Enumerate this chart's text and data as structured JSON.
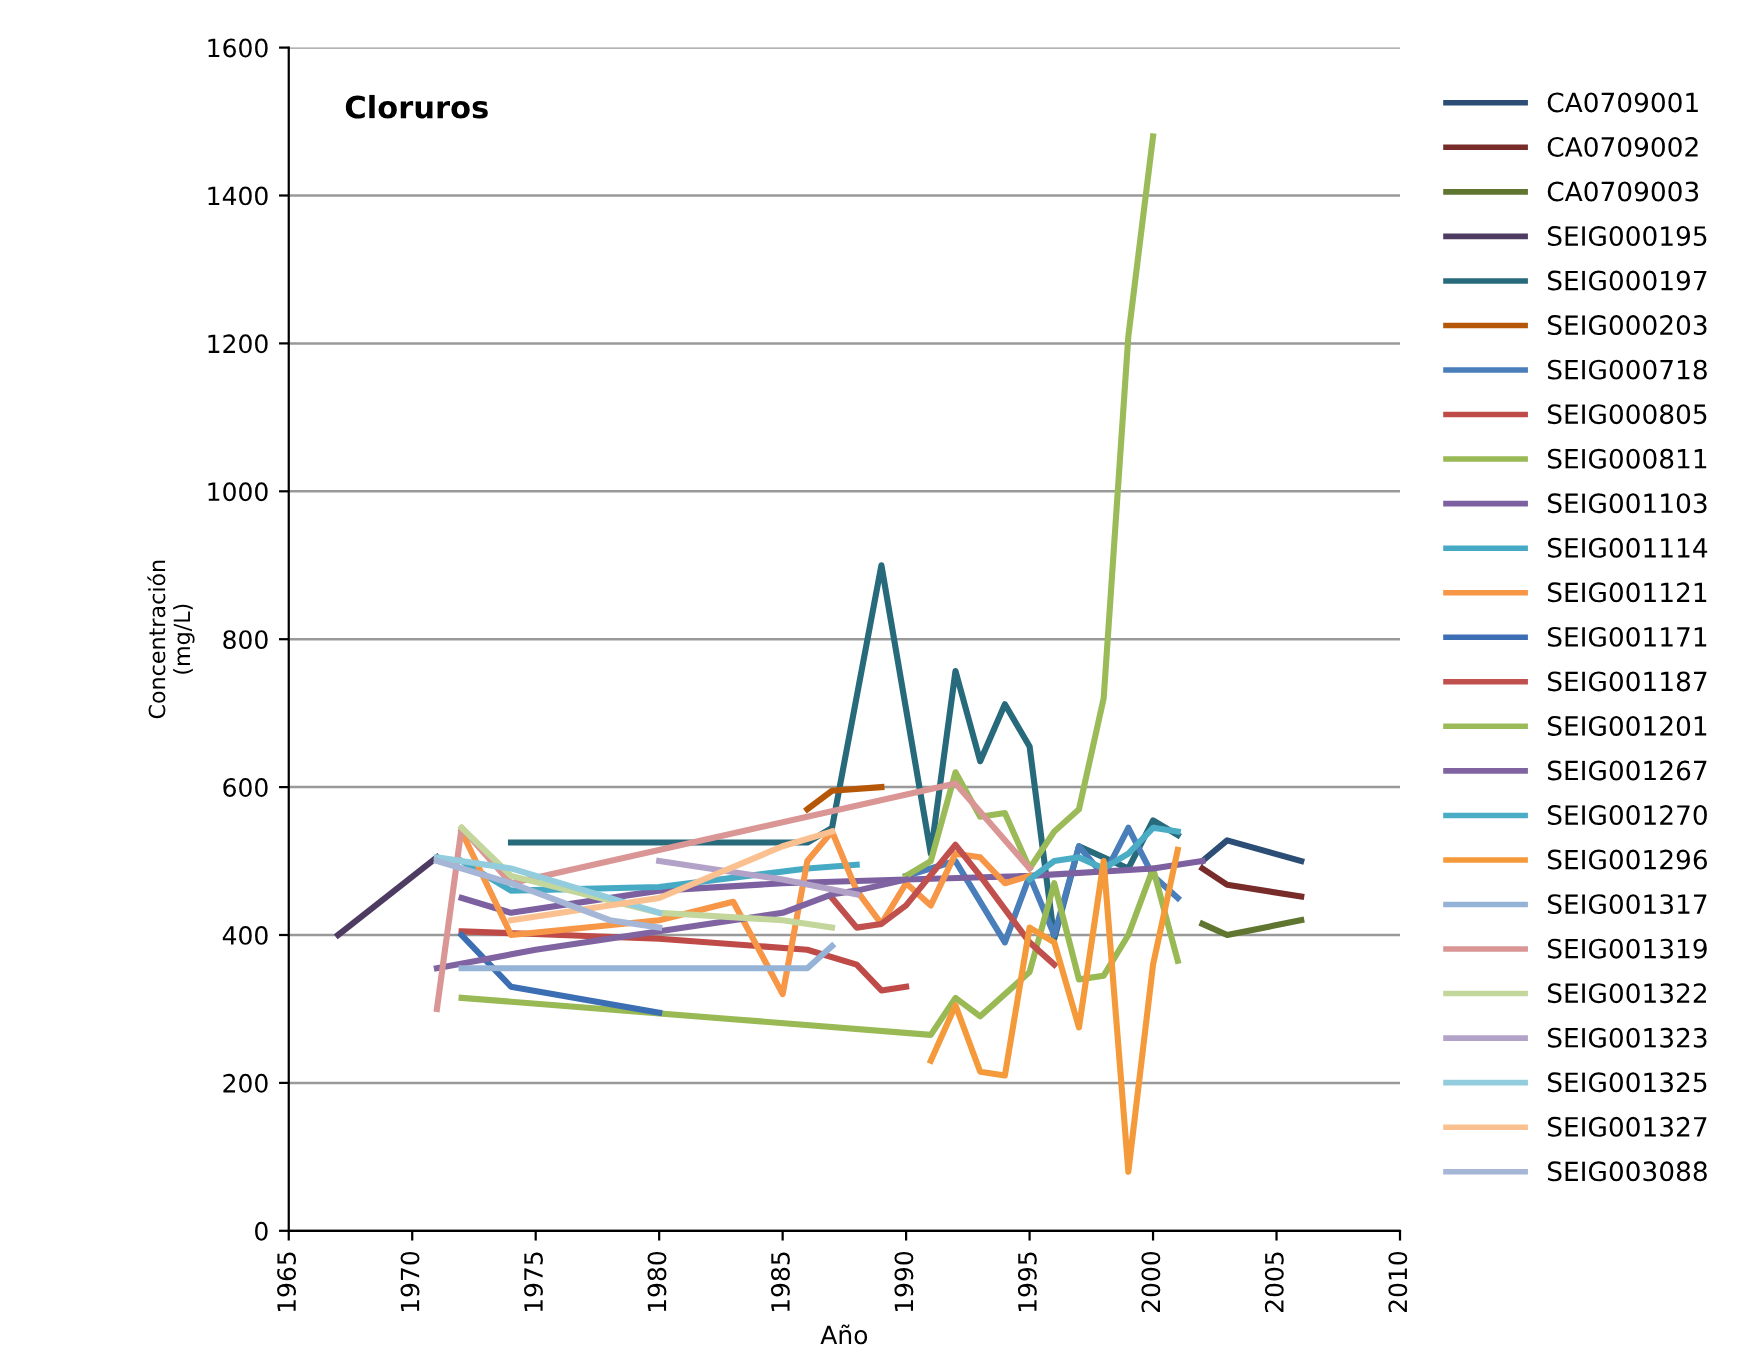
{
  "chart_data": {
    "type": "line",
    "title": "Cloruros",
    "xlabel": "Año",
    "ylabel": "Concentración\n(mg/L)",
    "xlim": [
      1965,
      2010
    ],
    "xticks": [
      1965,
      1970,
      1975,
      1980,
      1985,
      1990,
      1995,
      2000,
      2005,
      2010
    ],
    "ylim": [
      0,
      1600
    ],
    "yticks": [
      0,
      200,
      400,
      600,
      800,
      1000,
      1200,
      1400,
      1600
    ],
    "grid": "y",
    "legend": "right",
    "marker": "none",
    "line_style": "solid",
    "series": [
      {
        "name": "CA0709001",
        "color": "#2c4d75",
        "x": [
          2002,
          2003,
          2006
        ],
        "values": [
          500,
          528,
          500
        ]
      },
      {
        "name": "CA0709002",
        "color": "#772c2a",
        "x": [
          2002,
          2003,
          2006
        ],
        "values": [
          490,
          468,
          452
        ]
      },
      {
        "name": "CA0709003",
        "color": "#5f7530",
        "x": [
          2002,
          2003,
          2006
        ],
        "values": [
          415,
          400,
          420
        ]
      },
      {
        "name": "SEIG000195",
        "color": "#4d3b62",
        "x": [
          1967,
          1971
        ],
        "values": [
          400,
          505
        ]
      },
      {
        "name": "SEIG000197",
        "color": "#276a7c",
        "x": [
          1974,
          1986,
          1987,
          1989,
          1991,
          1992,
          1993,
          1994,
          1995,
          1996,
          1997,
          1999,
          2000,
          2001
        ],
        "values": [
          525,
          525,
          545,
          900,
          510,
          757,
          635,
          712,
          655,
          395,
          520,
          490,
          555,
          535
        ]
      },
      {
        "name": "SEIG000203",
        "color": "#b65708",
        "x": [
          1986,
          1987,
          1989
        ],
        "values": [
          570,
          595,
          600
        ]
      },
      {
        "name": "SEIG000718",
        "color": "#4a7ebb",
        "x": [
          1990,
          1992,
          1994,
          1995,
          1996,
          1997,
          1998,
          1999,
          2000,
          2001
        ],
        "values": [
          480,
          500,
          390,
          480,
          400,
          520,
          480,
          545,
          480,
          450
        ]
      },
      {
        "name": "SEIG000805",
        "color": "#be4b48",
        "x": [
          1972,
          1980,
          1986,
          1988,
          1989,
          1990
        ],
        "values": [
          405,
          395,
          380,
          360,
          325,
          330
        ]
      },
      {
        "name": "SEIG000811",
        "color": "#98b954",
        "x": [
          1972,
          1991,
          1992,
          1993,
          1995,
          1996,
          1997,
          1998,
          1999,
          2000,
          2001
        ],
        "values": [
          315,
          265,
          315,
          290,
          350,
          470,
          340,
          345,
          400,
          490,
          365
        ]
      },
      {
        "name": "SEIG001103",
        "color": "#7d60a0",
        "x": [
          1972,
          1974,
          1980,
          1985,
          1990,
          1995,
          2000,
          2002
        ],
        "values": [
          450,
          430,
          460,
          470,
          475,
          480,
          490,
          500
        ]
      },
      {
        "name": "SEIG001114",
        "color": "#46aac5",
        "x": [
          1972,
          1974,
          1980,
          1986,
          1988
        ],
        "values": [
          500,
          460,
          465,
          490,
          495
        ]
      },
      {
        "name": "SEIG001121",
        "color": "#f79646",
        "x": [
          1972,
          1974,
          1980,
          1983,
          1985,
          1986,
          1987,
          1988,
          1989,
          1990,
          1991,
          1992,
          1993,
          1994,
          1995
        ],
        "values": [
          540,
          400,
          420,
          445,
          320,
          500,
          540,
          460,
          415,
          470,
          440,
          510,
          505,
          470,
          480
        ]
      },
      {
        "name": "SEIG001171",
        "color": "#3c6eb4",
        "x": [
          1972,
          1974,
          1980
        ],
        "values": [
          400,
          330,
          295
        ]
      },
      {
        "name": "SEIG001187",
        "color": "#c0504d",
        "x": [
          1987,
          1988,
          1989,
          1990,
          1992,
          1993,
          1995,
          1996
        ],
        "values": [
          450,
          410,
          415,
          440,
          522,
          480,
          390,
          360
        ]
      },
      {
        "name": "SEIG001201",
        "color": "#9bbb59",
        "x": [
          1990,
          1991,
          1992,
          1993,
          1994,
          1995,
          1996,
          1997,
          1998,
          1999,
          2000
        ],
        "values": [
          480,
          500,
          620,
          560,
          565,
          490,
          540,
          570,
          720,
          1210,
          1480
        ]
      },
      {
        "name": "SEIG001267",
        "color": "#8064a2",
        "x": [
          1971,
          1975,
          1980,
          1985,
          1987,
          1988,
          1990
        ],
        "values": [
          355,
          380,
          405,
          430,
          455,
          460,
          475
        ]
      },
      {
        "name": "SEIG001270",
        "color": "#4bacc6",
        "x": [
          1995,
          1996,
          1997,
          1998,
          1999,
          2000,
          2001
        ],
        "values": [
          475,
          500,
          505,
          490,
          510,
          545,
          540
        ]
      },
      {
        "name": "SEIG001296",
        "color": "#f59a3a",
        "x": [
          1991,
          1992,
          1993,
          1994,
          1995,
          1996,
          1997,
          1998,
          1999,
          2000,
          2001
        ],
        "values": [
          230,
          305,
          215,
          210,
          410,
          390,
          275,
          500,
          80,
          360,
          515
        ]
      },
      {
        "name": "SEIG001317",
        "color": "#95b3d7",
        "x": [
          1972,
          1986,
          1987
        ],
        "values": [
          355,
          355,
          385
        ]
      },
      {
        "name": "SEIG001319",
        "color": "#d99694",
        "x": [
          1971,
          1972,
          1974,
          1992,
          1995
        ],
        "values": [
          300,
          545,
          470,
          605,
          490
        ]
      },
      {
        "name": "SEIG001322",
        "color": "#c3d69b",
        "x": [
          1972,
          1974,
          1980,
          1985,
          1987
        ],
        "values": [
          545,
          480,
          430,
          420,
          410
        ]
      },
      {
        "name": "SEIG001323",
        "color": "#b3a2c7",
        "x": [
          1980,
          1985,
          1988
        ],
        "values": [
          500,
          475,
          455
        ]
      },
      {
        "name": "SEIG001325",
        "color": "#93cddd",
        "x": [
          1971,
          1974,
          1980
        ],
        "values": [
          505,
          490,
          430
        ]
      },
      {
        "name": "SEIG001327",
        "color": "#fac090",
        "x": [
          1974,
          1980,
          1985,
          1987
        ],
        "values": [
          420,
          450,
          520,
          540
        ]
      },
      {
        "name": "SEIG003088",
        "color": "#a5b6d6",
        "x": [
          1971,
          1974,
          1978,
          1980
        ],
        "values": [
          500,
          470,
          420,
          410
        ]
      }
    ]
  }
}
